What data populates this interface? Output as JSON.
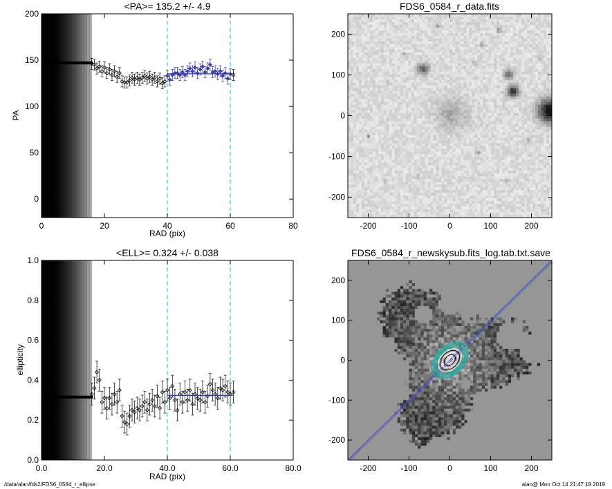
{
  "footer": {
    "path": "/data/alan/fds2/FDS6_0584_r_ellipse",
    "stamp": "alan@  Mon Oct 14 21:47:19 2019"
  },
  "chart_data": [
    {
      "id": "pa",
      "type": "scatter",
      "title": "<PA>= 135.2 +/-   4.9",
      "xlabel": "RAD (pix)",
      "ylabel": "PA",
      "xlim": [
        0,
        80
      ],
      "ylim": [
        -20,
        200
      ],
      "xticks": [
        0,
        20,
        40,
        60,
        80
      ],
      "yticks": [
        0,
        50,
        100,
        150,
        200
      ],
      "fit_range": [
        40,
        60
      ],
      "fit_line": {
        "x": [
          40,
          61
        ],
        "y": [
          135.2,
          135.2
        ]
      },
      "inner_flat": {
        "x_end": 16,
        "y": 147
      },
      "points": [
        [
          16.0,
          146
        ],
        [
          16.8,
          145
        ],
        [
          17.6,
          141
        ],
        [
          18.4,
          143
        ],
        [
          19.2,
          138
        ],
        [
          20.0,
          142
        ],
        [
          20.8,
          136
        ],
        [
          21.6,
          140
        ],
        [
          22.4,
          134
        ],
        [
          23.2,
          138
        ],
        [
          24.0,
          132
        ],
        [
          24.8,
          136
        ],
        [
          25.6,
          127
        ],
        [
          26.4,
          126
        ],
        [
          27.2,
          126
        ],
        [
          28.0,
          128
        ],
        [
          28.8,
          131
        ],
        [
          29.6,
          129
        ],
        [
          30.4,
          131
        ],
        [
          31.2,
          129
        ],
        [
          32.0,
          131
        ],
        [
          32.8,
          133
        ],
        [
          33.6,
          130
        ],
        [
          34.4,
          132
        ],
        [
          35.2,
          129
        ],
        [
          36.0,
          131
        ],
        [
          36.8,
          127
        ],
        [
          37.6,
          130
        ],
        [
          38.4,
          125
        ],
        [
          39.2,
          127
        ],
        [
          40.0,
          133
        ],
        [
          40.8,
          129
        ],
        [
          41.6,
          134
        ],
        [
          42.4,
          136
        ],
        [
          43.2,
          136
        ],
        [
          44.0,
          134
        ],
        [
          44.8,
          137
        ],
        [
          45.6,
          134
        ],
        [
          46.4,
          138
        ],
        [
          47.2,
          141
        ],
        [
          48.0,
          138
        ],
        [
          48.8,
          142
        ],
        [
          49.6,
          136
        ],
        [
          50.4,
          140
        ],
        [
          51.2,
          143
        ],
        [
          52.0,
          137
        ],
        [
          52.8,
          141
        ],
        [
          53.6,
          145
        ],
        [
          54.4,
          137
        ],
        [
          55.2,
          138
        ],
        [
          56.0,
          135
        ],
        [
          56.8,
          138
        ],
        [
          57.6,
          133
        ],
        [
          58.4,
          136
        ],
        [
          59.2,
          130
        ],
        [
          60.0,
          135
        ],
        [
          61.0,
          134
        ]
      ],
      "err": 6
    },
    {
      "id": "ell",
      "type": "scatter",
      "title": "<ELL>= 0.324 +/-  0.038",
      "xlabel": "RAD (pix)",
      "ylabel": "ellipticity",
      "xlim": [
        0,
        80
      ],
      "ylim": [
        0,
        1
      ],
      "xticks": [
        0,
        20,
        40,
        60,
        80
      ],
      "yticks": [
        0.0,
        0.2,
        0.4,
        0.6,
        0.8,
        1.0
      ],
      "fit_range": [
        40,
        60
      ],
      "fit_line": {
        "x": [
          40,
          61
        ],
        "y": [
          0.324,
          0.324
        ]
      },
      "inner_flat": {
        "x_end": 16,
        "y": 0.315
      },
      "points": [
        [
          16.0,
          0.33
        ],
        [
          16.8,
          0.36
        ],
        [
          17.6,
          0.44
        ],
        [
          18.4,
          0.4
        ],
        [
          19.2,
          0.29
        ],
        [
          20.0,
          0.31
        ],
        [
          20.8,
          0.26
        ],
        [
          21.6,
          0.31
        ],
        [
          22.4,
          0.28
        ],
        [
          23.2,
          0.33
        ],
        [
          24.0,
          0.29
        ],
        [
          24.8,
          0.35
        ],
        [
          25.6,
          0.22
        ],
        [
          26.4,
          0.19
        ],
        [
          27.2,
          0.18
        ],
        [
          28.0,
          0.22
        ],
        [
          28.8,
          0.25
        ],
        [
          29.6,
          0.24
        ],
        [
          30.4,
          0.26
        ],
        [
          31.2,
          0.25
        ],
        [
          32.0,
          0.27
        ],
        [
          32.8,
          0.29
        ],
        [
          33.6,
          0.25
        ],
        [
          34.4,
          0.28
        ],
        [
          35.2,
          0.3
        ],
        [
          36.0,
          0.27
        ],
        [
          36.8,
          0.32
        ],
        [
          37.6,
          0.26
        ],
        [
          38.4,
          0.34
        ],
        [
          39.2,
          0.29
        ],
        [
          40.0,
          0.35
        ],
        [
          40.8,
          0.31
        ],
        [
          41.6,
          0.37
        ],
        [
          42.4,
          0.3
        ],
        [
          43.2,
          0.25
        ],
        [
          44.0,
          0.33
        ],
        [
          44.8,
          0.29
        ],
        [
          45.6,
          0.34
        ],
        [
          46.4,
          0.3
        ],
        [
          47.2,
          0.35
        ],
        [
          48.0,
          0.28
        ],
        [
          48.8,
          0.33
        ],
        [
          49.6,
          0.31
        ],
        [
          50.4,
          0.3
        ],
        [
          51.2,
          0.34
        ],
        [
          52.0,
          0.29
        ],
        [
          52.8,
          0.32
        ],
        [
          53.6,
          0.38
        ],
        [
          54.4,
          0.35
        ],
        [
          55.2,
          0.33
        ],
        [
          56.0,
          0.31
        ],
        [
          56.8,
          0.36
        ],
        [
          57.6,
          0.35
        ],
        [
          58.4,
          0.37
        ],
        [
          59.2,
          0.34
        ],
        [
          60.0,
          0.33
        ],
        [
          61.0,
          0.34
        ]
      ],
      "err": 0.055
    },
    {
      "id": "img1",
      "type": "heatmap",
      "title": "FDS6_0584_r_data.fits",
      "xlim": [
        -250,
        250
      ],
      "ylim": [
        -250,
        250
      ],
      "xticks": [
        -200,
        -100,
        0,
        100,
        200
      ],
      "yticks": [
        -200,
        -100,
        0,
        100,
        200
      ],
      "sources": [
        {
          "x": -65,
          "y": 115,
          "r": 14,
          "v": 0.55
        },
        {
          "x": 145,
          "y": 100,
          "r": 12,
          "v": 0.5
        },
        {
          "x": 155,
          "y": 60,
          "r": 14,
          "v": 0.75
        },
        {
          "x": 245,
          "y": 12,
          "r": 28,
          "v": 0.95
        },
        {
          "x": 5,
          "y": 5,
          "r": 38,
          "v": 0.22
        },
        {
          "x": 80,
          "y": 175,
          "r": 6,
          "v": 0.3
        },
        {
          "x": -30,
          "y": 220,
          "r": 5,
          "v": 0.25
        },
        {
          "x": 120,
          "y": 210,
          "r": 6,
          "v": 0.3
        },
        {
          "x": -150,
          "y": 80,
          "r": 5,
          "v": 0.25
        },
        {
          "x": -200,
          "y": -50,
          "r": 5,
          "v": 0.3
        },
        {
          "x": 70,
          "y": -90,
          "r": 5,
          "v": 0.3
        },
        {
          "x": -80,
          "y": -150,
          "r": 5,
          "v": 0.25
        },
        {
          "x": 140,
          "y": -160,
          "r": 5,
          "v": 0.25
        },
        {
          "x": 190,
          "y": -60,
          "r": 5,
          "v": 0.25
        },
        {
          "x": -160,
          "y": -160,
          "r": 5,
          "v": 0.25
        },
        {
          "x": 60,
          "y": 130,
          "r": 5,
          "v": 0.25
        },
        {
          "x": -110,
          "y": 150,
          "r": 5,
          "v": 0.25
        },
        {
          "x": 220,
          "y": 140,
          "r": 5,
          "v": 0.25
        }
      ]
    },
    {
      "id": "img2",
      "type": "heatmap",
      "title": "FDS6_0584_r_newskysub.fits_log.tab.txt.save",
      "xlim": [
        -250,
        250
      ],
      "ylim": [
        -250,
        250
      ],
      "xticks": [
        -200,
        -100,
        0,
        100,
        200
      ],
      "yticks": [
        -200,
        -100,
        0,
        100,
        200
      ],
      "pa_line": 135.2,
      "masks": [
        {
          "x": 150,
          "y": 60,
          "r": 35
        },
        {
          "x": -65,
          "y": 115,
          "r": 22
        },
        {
          "x": 210,
          "y": 30,
          "r": 40
        },
        {
          "x": 0,
          "y": 140,
          "r": 28
        },
        {
          "x": -120,
          "y": -80,
          "r": 25
        },
        {
          "x": 90,
          "y": -120,
          "r": 24
        },
        {
          "x": -30,
          "y": -210,
          "r": 20
        },
        {
          "x": 190,
          "y": -190,
          "r": 26
        },
        {
          "x": -200,
          "y": 190,
          "r": 30
        },
        {
          "x": 80,
          "y": 190,
          "r": 20
        },
        {
          "x": -150,
          "y": 40,
          "r": 18
        },
        {
          "x": 40,
          "y": -60,
          "r": 14
        }
      ],
      "ellipses": [
        {
          "a": 10,
          "e": 0.32
        },
        {
          "a": 16,
          "e": 0.31
        },
        {
          "a": 22,
          "e": 0.3
        },
        {
          "a": 28,
          "e": 0.31
        },
        {
          "a": 33,
          "e": 0.32
        },
        {
          "a": 38,
          "e": 0.33
        },
        {
          "a": 43,
          "e": 0.33
        },
        {
          "a": 48,
          "e": 0.34
        },
        {
          "a": 53,
          "e": 0.34
        }
      ]
    }
  ]
}
